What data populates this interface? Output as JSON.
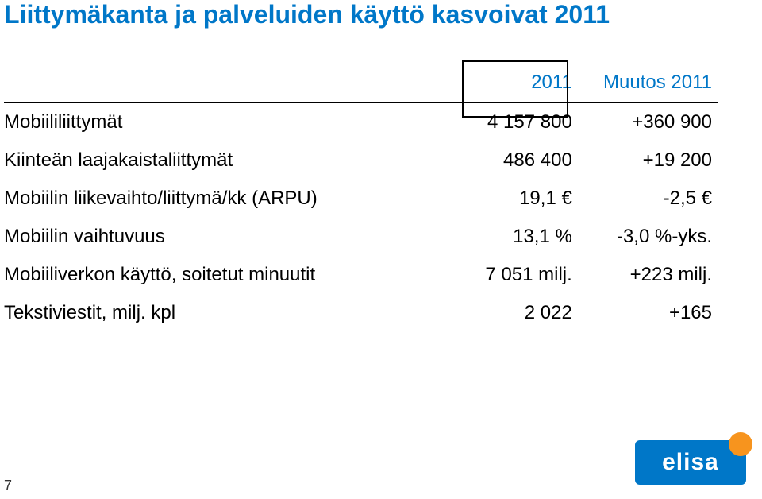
{
  "title": "Liittymäkanta ja palveluiden käyttö kasvoivat 2011",
  "columns": {
    "value": "2011",
    "change": "Muutos 2011"
  },
  "rows": [
    {
      "label": "Mobiililiittymät",
      "value": "4 157 800",
      "change": "+360 900"
    },
    {
      "label": "Kiinteän laajakaistaliittymät",
      "value": "486 400",
      "change": "+19 200"
    },
    {
      "label": "Mobiilin liikevaihto/liittymä/kk (ARPU)",
      "value": "19,1 €",
      "change": "-2,5 €"
    },
    {
      "label": "Mobiilin vaihtuvuus",
      "value": "13,1 %",
      "change": "-3,0 %-yks."
    },
    {
      "label": "Mobiiliverkon käyttö, soitetut minuutit",
      "value": "7 051 milj.",
      "change": "+223 milj."
    },
    {
      "label": "Tekstiviestit, milj. kpl",
      "value": "2 022",
      "change": "+165"
    }
  ],
  "page_number": "7",
  "logo_text": "elisa",
  "colors": {
    "brand_blue": "#0077c8",
    "orange": "#f7941e",
    "text": "#000000",
    "bg": "#ffffff"
  },
  "typography": {
    "title_fontsize_pt": 24,
    "body_fontsize_pt": 18
  }
}
